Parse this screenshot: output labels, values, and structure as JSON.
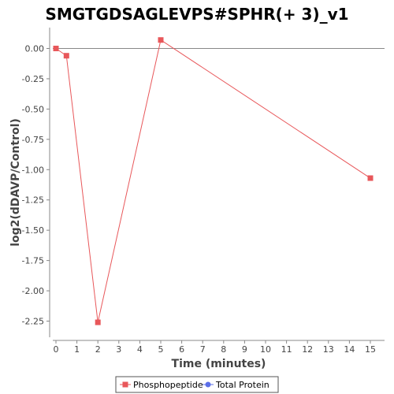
{
  "chart_data": {
    "type": "line",
    "title": "SMGTGDSAGLEVPS#SPHR(+ 3)_v1",
    "xlabel": "Time (minutes)",
    "ylabel": "log2(dDAVP/Control)",
    "xlim": [
      0,
      16
    ],
    "ylim": [
      -2.4,
      0.1
    ],
    "x_ticks": [
      0,
      1,
      2,
      3,
      4,
      5,
      6,
      7,
      8,
      9,
      10,
      11,
      12,
      13,
      14,
      15
    ],
    "y_ticks": [
      0.0,
      -0.25,
      -0.5,
      -0.75,
      -1.0,
      -1.25,
      -1.5,
      -1.75,
      -2.0,
      -2.25
    ],
    "y_tick_labels": [
      "0.00",
      "-0.25",
      "-0.50",
      "-0.75",
      "-1.00",
      "-1.25",
      "-1.50",
      "-1.75",
      "-2.00",
      "-2.25"
    ],
    "grid": false,
    "zero_line": true,
    "legend_position": "bottom",
    "series": [
      {
        "name": "Phosphopeptide",
        "color": "#e8575a",
        "marker": "square",
        "x": [
          0,
          0.5,
          2,
          5,
          15
        ],
        "y": [
          0.0,
          -0.06,
          -2.26,
          0.07,
          -1.07
        ]
      },
      {
        "name": "Total Protein",
        "color": "#5b6ee8",
        "marker": "circle",
        "x": [],
        "y": []
      }
    ]
  }
}
